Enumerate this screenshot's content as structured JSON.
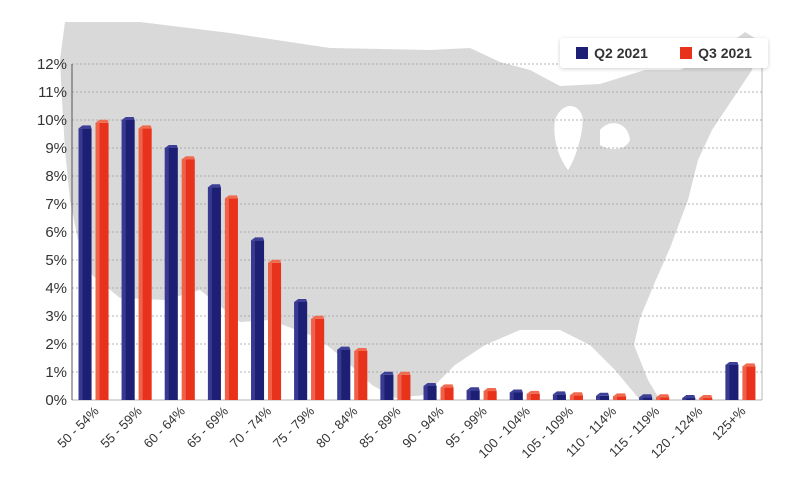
{
  "chart_data": {
    "type": "bar",
    "title": "",
    "xlabel": "",
    "ylabel": "",
    "categories": [
      "50 - 54%",
      "55 - 59%",
      "60 - 64%",
      "65 - 69%",
      "70 - 74%",
      "75 - 79%",
      "80 - 84%",
      "85 - 89%",
      "90 - 94%",
      "95 - 99%",
      "100 - 104%",
      "105 - 109%",
      "110 - 114%",
      "115 - 119%",
      "120 - 124%",
      "125+%"
    ],
    "series": [
      {
        "name": "Q2 2021",
        "color": "#1c1f73",
        "values": [
          9.7,
          10.0,
          9.0,
          7.6,
          5.7,
          3.5,
          1.8,
          0.9,
          0.5,
          0.35,
          0.27,
          0.2,
          0.15,
          0.1,
          0.07,
          1.25
        ]
      },
      {
        "name": "Q3 2021",
        "color": "#e8321c",
        "values": [
          9.9,
          9.7,
          8.6,
          7.2,
          4.9,
          2.9,
          1.75,
          0.9,
          0.45,
          0.32,
          0.22,
          0.17,
          0.13,
          0.1,
          0.07,
          1.2
        ]
      }
    ],
    "ylim": [
      0,
      12
    ],
    "yticks": [
      "0%",
      "1%",
      "2%",
      "3%",
      "4%",
      "5%",
      "6%",
      "7%",
      "8%",
      "9%",
      "10%",
      "11%",
      "12%"
    ],
    "grid": true,
    "legend": "top-right",
    "background": "map of the United States (gray silhouette)"
  },
  "legend": {
    "items": [
      {
        "label": "Q2 2021",
        "color": "#1c1f73"
      },
      {
        "label": "Q3 2021",
        "color": "#e8321c"
      }
    ]
  }
}
